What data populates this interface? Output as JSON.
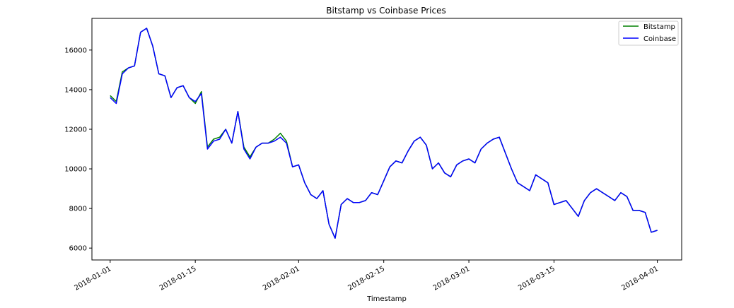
{
  "chart_data": {
    "type": "line",
    "title": "Bitstamp vs Coinbase Prices",
    "xlabel": "Timestamp",
    "ylabel": "",
    "x_ticks": [
      "2018-01-01",
      "2018-01-15",
      "2018-02-01",
      "2018-02-15",
      "2018-03-01",
      "2018-03-15",
      "2018-04-01"
    ],
    "y_ticks": [
      6000,
      8000,
      10000,
      12000,
      14000,
      16000
    ],
    "xlim": [
      "2017-12-29",
      "2018-04-05"
    ],
    "ylim": [
      5400,
      17600
    ],
    "grid": false,
    "legend_position": "top-right",
    "x": [
      "2018-01-01",
      "2018-01-02",
      "2018-01-03",
      "2018-01-04",
      "2018-01-05",
      "2018-01-06",
      "2018-01-07",
      "2018-01-08",
      "2018-01-09",
      "2018-01-10",
      "2018-01-11",
      "2018-01-12",
      "2018-01-13",
      "2018-01-14",
      "2018-01-15",
      "2018-01-16",
      "2018-01-17",
      "2018-01-18",
      "2018-01-19",
      "2018-01-20",
      "2018-01-21",
      "2018-01-22",
      "2018-01-23",
      "2018-01-24",
      "2018-01-25",
      "2018-01-26",
      "2018-01-27",
      "2018-01-28",
      "2018-01-29",
      "2018-01-30",
      "2018-01-31",
      "2018-02-01",
      "2018-02-02",
      "2018-02-03",
      "2018-02-04",
      "2018-02-05",
      "2018-02-06",
      "2018-02-07",
      "2018-02-08",
      "2018-02-09",
      "2018-02-10",
      "2018-02-11",
      "2018-02-12",
      "2018-02-13",
      "2018-02-14",
      "2018-02-15",
      "2018-02-16",
      "2018-02-17",
      "2018-02-18",
      "2018-02-19",
      "2018-02-20",
      "2018-02-21",
      "2018-02-22",
      "2018-02-23",
      "2018-02-24",
      "2018-02-25",
      "2018-02-26",
      "2018-02-27",
      "2018-02-28",
      "2018-03-01",
      "2018-03-02",
      "2018-03-03",
      "2018-03-04",
      "2018-03-05",
      "2018-03-06",
      "2018-03-07",
      "2018-03-08",
      "2018-03-09",
      "2018-03-10",
      "2018-03-11",
      "2018-03-12",
      "2018-03-13",
      "2018-03-14",
      "2018-03-15",
      "2018-03-16",
      "2018-03-17",
      "2018-03-18",
      "2018-03-19",
      "2018-03-20",
      "2018-03-21",
      "2018-03-22",
      "2018-03-23",
      "2018-03-24",
      "2018-03-25",
      "2018-03-26",
      "2018-03-27",
      "2018-03-28",
      "2018-03-29",
      "2018-03-30",
      "2018-03-31",
      "2018-04-01"
    ],
    "series": [
      {
        "name": "Bitstamp",
        "color": "#008000",
        "values": [
          13700,
          13400,
          14900,
          15100,
          15200,
          16900,
          17100,
          16200,
          14800,
          14700,
          13600,
          14100,
          14200,
          13600,
          13300,
          13900,
          11100,
          11500,
          11600,
          12000,
          11300,
          12900,
          11100,
          10600,
          11100,
          11300,
          11300,
          11500,
          11800,
          11400,
          10100,
          10200,
          9300,
          8700,
          8500,
          8900,
          7200,
          6500,
          8200,
          8500,
          8300,
          8300,
          8400,
          8800,
          8700,
          9400,
          10100,
          10400,
          10300,
          10900,
          11400,
          11600,
          11200,
          10000,
          10300,
          9800,
          9600,
          10200,
          10400,
          10500,
          10300,
          11000,
          11300,
          11500,
          11600,
          10800,
          10000,
          9300,
          9100,
          8900,
          9700,
          9500,
          9300,
          8200,
          8300,
          8400,
          8000,
          7600,
          8400,
          8800,
          9000,
          8800,
          8600,
          8400,
          8800,
          8600,
          7900,
          7900,
          7800,
          6800,
          6900
        ]
      },
      {
        "name": "Coinbase",
        "color": "#0000ff",
        "values": [
          13600,
          13300,
          14800,
          15100,
          15200,
          16900,
          17100,
          16200,
          14800,
          14700,
          13600,
          14100,
          14200,
          13600,
          13400,
          13800,
          11000,
          11400,
          11500,
          12000,
          11300,
          12900,
          11000,
          10500,
          11100,
          11300,
          11300,
          11400,
          11600,
          11300,
          10100,
          10200,
          9300,
          8700,
          8500,
          8900,
          7200,
          6500,
          8200,
          8500,
          8300,
          8300,
          8400,
          8800,
          8700,
          9400,
          10100,
          10400,
          10300,
          10900,
          11400,
          11600,
          11200,
          10000,
          10300,
          9800,
          9600,
          10200,
          10400,
          10500,
          10300,
          11000,
          11300,
          11500,
          11600,
          10800,
          10000,
          9300,
          9100,
          8900,
          9700,
          9500,
          9300,
          8200,
          8300,
          8400,
          8000,
          7600,
          8400,
          8800,
          9000,
          8800,
          8600,
          8400,
          8800,
          8600,
          7900,
          7900,
          7800,
          6800,
          6900
        ]
      }
    ]
  }
}
